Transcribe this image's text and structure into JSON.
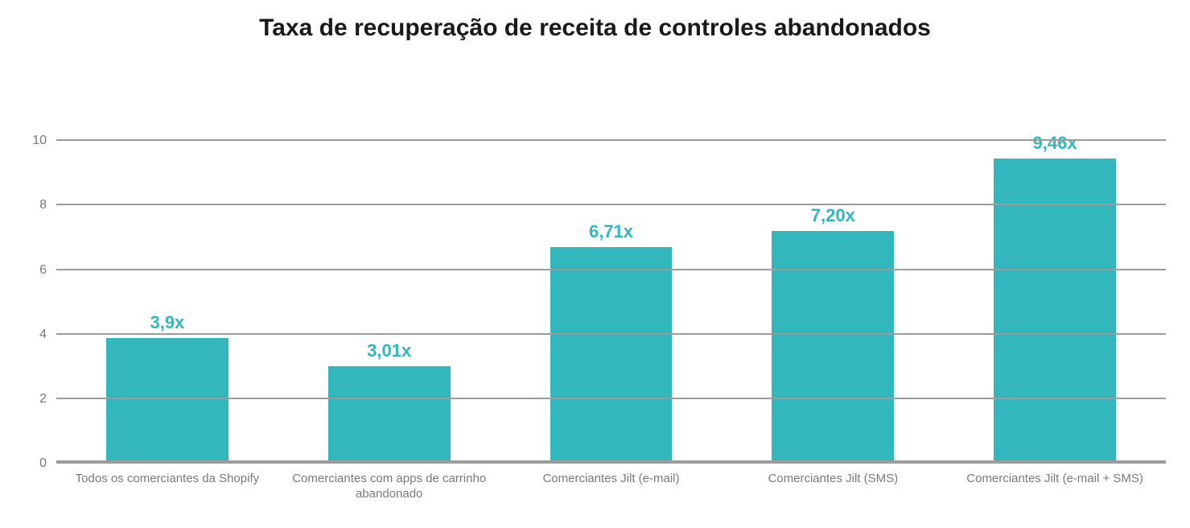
{
  "chart": {
    "type": "bar",
    "title": "Taxa de recuperação de receita de controles abandonados",
    "title_fontsize": 30,
    "title_color": "#1a1a1a",
    "background_color": "#ffffff",
    "bar_color": "#31b7bc",
    "value_label_color": "#31b7bc",
    "value_label_fontsize": 22,
    "grid_color": "#9c9c9c",
    "baseline_color": "#9c9c9c",
    "axis_label_color": "#7a7a7a",
    "axis_label_fontsize": 16,
    "x_label_fontsize": 15,
    "x_label_color": "#7a7a7a",
    "ylim_min": 0,
    "ylim_max": 12,
    "yticks": [
      0,
      2,
      4,
      6,
      8,
      10
    ],
    "ytick_labels": [
      "0",
      "2",
      "4",
      "6",
      "8",
      "10"
    ],
    "bar_width_pct": 55,
    "categories": [
      "Todos os comerciantes da Shopify",
      "Comerciantes com apps de carrinho abandonado",
      "Comerciantes Jilt (e-mail)",
      "Comerciantes Jilt (SMS)",
      "Comerciantes Jilt (e-mail + SMS)"
    ],
    "values": [
      3.9,
      3.01,
      6.71,
      7.2,
      9.46
    ],
    "value_labels": [
      "3,9x",
      "3,01x",
      "6,71x",
      "7,20x",
      "9,46x"
    ]
  }
}
